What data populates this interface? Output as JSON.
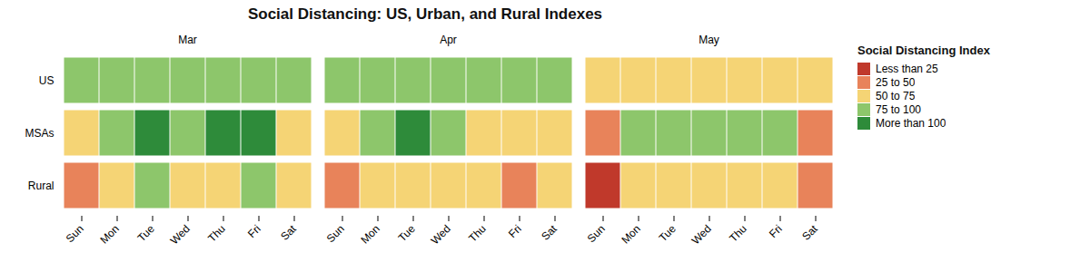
{
  "chart_data": {
    "type": "heatmap",
    "title": "Social Distancing: US, Urban, and Rural Indexes",
    "rows": [
      "US",
      "MSAs",
      "Rural"
    ],
    "months": [
      "Mar",
      "Apr",
      "May"
    ],
    "days": [
      "Sun",
      "Mon",
      "Tue",
      "Wed",
      "Thu",
      "Fri",
      "Sat"
    ],
    "legend": "right",
    "legend_title": "Social Distancing Index",
    "levels": [
      {
        "name": "Less than 25",
        "color": "#c0392b"
      },
      {
        "name": "25 to 50",
        "color": "#e8835a"
      },
      {
        "name": "50 to 75",
        "color": "#f5d475"
      },
      {
        "name": "75 to 100",
        "color": "#8dc66b"
      },
      {
        "name": "More than 100",
        "color": "#2e8b3a"
      }
    ],
    "cells": {
      "US": {
        "Mar": [
          "75 to 100",
          "75 to 100",
          "75 to 100",
          "75 to 100",
          "75 to 100",
          "75 to 100",
          "75 to 100"
        ],
        "Apr": [
          "75 to 100",
          "75 to 100",
          "75 to 100",
          "75 to 100",
          "75 to 100",
          "75 to 100",
          "75 to 100"
        ],
        "May": [
          "50 to 75",
          "50 to 75",
          "50 to 75",
          "50 to 75",
          "50 to 75",
          "50 to 75",
          "50 to 75"
        ]
      },
      "MSAs": {
        "Mar": [
          "50 to 75",
          "75 to 100",
          "More than 100",
          "75 to 100",
          "More than 100",
          "More than 100",
          "50 to 75"
        ],
        "Apr": [
          "50 to 75",
          "75 to 100",
          "More than 100",
          "75 to 100",
          "50 to 75",
          "50 to 75",
          "50 to 75"
        ],
        "May": [
          "25 to 50",
          "75 to 100",
          "75 to 100",
          "75 to 100",
          "75 to 100",
          "75 to 100",
          "25 to 50"
        ]
      },
      "Rural": {
        "Mar": [
          "25 to 50",
          "50 to 75",
          "75 to 100",
          "50 to 75",
          "50 to 75",
          "75 to 100",
          "50 to 75"
        ],
        "Apr": [
          "25 to 50",
          "50 to 75",
          "50 to 75",
          "50 to 75",
          "50 to 75",
          "25 to 50",
          "50 to 75"
        ],
        "May": [
          "Less than 25",
          "50 to 75",
          "50 to 75",
          "50 to 75",
          "50 to 75",
          "50 to 75",
          "25 to 50"
        ]
      }
    }
  }
}
